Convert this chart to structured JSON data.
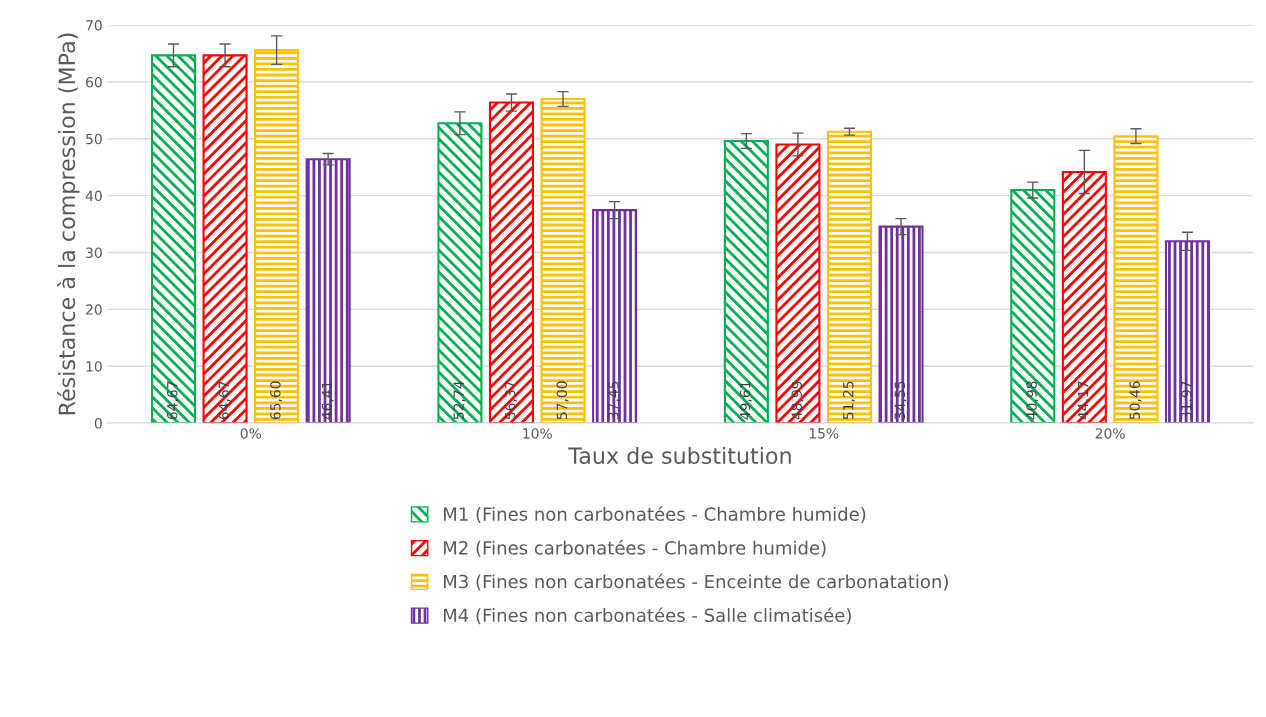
{
  "chart_data": {
    "type": "bar",
    "xlabel": "Taux de substitution",
    "ylabel": "Résistance à la compression (MPa)",
    "categories": [
      "0%",
      "10%",
      "15%",
      "20%"
    ],
    "series": [
      {
        "name": "M1 (Fines non carbonatées - Chambre humide)",
        "color": "#00b050",
        "values": [
          64.67,
          52.74,
          49.61,
          40.98
        ],
        "value_labels": [
          "64,67",
          "52,74",
          "49,61",
          "40,98"
        ],
        "errors": [
          2,
          2,
          1.3,
          1.4
        ]
      },
      {
        "name": "M2 (Fines carbonatées - Chambre humide)",
        "color": "#ff0000",
        "values": [
          64.67,
          56.37,
          48.99,
          44.17
        ],
        "value_labels": [
          "64,67",
          "56,37",
          "48,99",
          "44,17"
        ],
        "errors": [
          2,
          1.5,
          2,
          3.8
        ]
      },
      {
        "name": "M3 (Fines non carbonatées - Enceinte de carbonatation)",
        "color": "#ffc000",
        "values": [
          65.6,
          57.0,
          51.25,
          50.46
        ],
        "value_labels": [
          "65,60",
          "57,00",
          "51,25",
          "50,46"
        ],
        "errors": [
          2.5,
          1.3,
          0.6,
          1.3
        ]
      },
      {
        "name": "M4 (Fines non carbonatées - Salle climatisée)",
        "color": "#7030a0",
        "values": [
          46.41,
          37.45,
          34.55,
          31.97
        ],
        "value_labels": [
          "46,41",
          "37,45",
          "34,55",
          "31,97"
        ],
        "errors": [
          1,
          1.5,
          1.4,
          1.6
        ]
      }
    ],
    "ylim": [
      0,
      70
    ],
    "yticks": [
      0,
      10,
      20,
      30,
      40,
      50,
      60,
      70
    ],
    "grid": "y",
    "legend": "bottom"
  }
}
